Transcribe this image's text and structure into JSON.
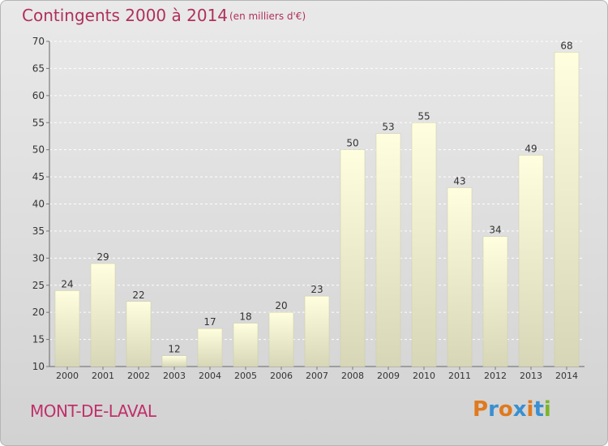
{
  "header": {
    "title": "Contingents 2000 à 2014",
    "unit": "(en milliers d'€)"
  },
  "footer": {
    "place": "MONT-DE-LAVAL",
    "logo": "Proxiti",
    "logo_colors": [
      "#e07a1f",
      "#3a8fd1",
      "#e07a1f",
      "#3a8fd1",
      "#e07a1f",
      "#3a8fd1",
      "#7bb52b"
    ]
  },
  "chart_data": {
    "type": "bar",
    "categories": [
      "2000",
      "2001",
      "2002",
      "2003",
      "2004",
      "2005",
      "2006",
      "2007",
      "2008",
      "2009",
      "2010",
      "2011",
      "2012",
      "2013",
      "2014"
    ],
    "values": [
      24,
      29,
      22,
      12,
      17,
      18,
      20,
      23,
      50,
      53,
      55,
      43,
      34,
      49,
      68
    ],
    "ylim": [
      10,
      70
    ],
    "yticks": [
      10,
      15,
      20,
      25,
      30,
      35,
      40,
      45,
      50,
      55,
      60,
      65,
      70
    ],
    "grid": true,
    "legend": "none",
    "bar_color_top": "#ffffdf",
    "bar_color_bottom": "#d7d7b7"
  }
}
